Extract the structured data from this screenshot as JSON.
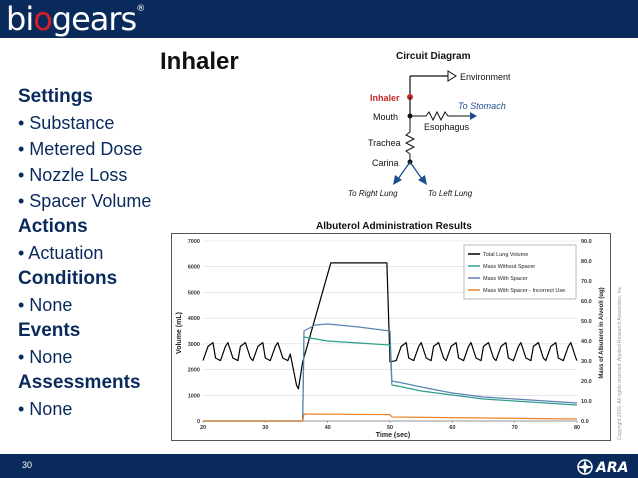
{
  "header": {
    "logo_prefix": "bi",
    "logo_dot": "o",
    "logo_suffix": "gears",
    "logo_reg": "®"
  },
  "slide": {
    "title": "Inhaler",
    "page_number": "30",
    "copyright": "Copyright 2015. All rights reserved. Applied Research Associates, Inc."
  },
  "settings_list": [
    {
      "type": "head",
      "text": "Settings"
    },
    {
      "type": "item",
      "text": "• Substance"
    },
    {
      "type": "item",
      "text": "• Metered Dose"
    },
    {
      "type": "item",
      "text": "• Nozzle Loss"
    },
    {
      "type": "item",
      "text": "• Spacer Volume"
    },
    {
      "type": "head",
      "text": "Actions"
    },
    {
      "type": "item",
      "text": "• Actuation"
    },
    {
      "type": "head",
      "text": "Conditions"
    },
    {
      "type": "item",
      "text": "• None"
    },
    {
      "type": "head",
      "text": "Events"
    },
    {
      "type": "item",
      "text": "• None"
    },
    {
      "type": "head",
      "text": "Assessments"
    },
    {
      "type": "item",
      "text": "• None"
    }
  ],
  "circuit": {
    "caption": "Circuit Diagram",
    "nodes": {
      "environment": "Environment",
      "inhaler": "Inhaler",
      "mouth": "Mouth",
      "esophagus": "Esophagus",
      "trachea": "Trachea",
      "carina": "Carina",
      "to_stomach": "To Stomach",
      "to_right_lung": "To Right Lung",
      "to_left_lung": "To Left Lung"
    }
  },
  "results_caption": "Albuterol Administration Results",
  "chart_data": {
    "type": "line",
    "xlabel": "Time (sec)",
    "ylabel": "Volume (mL)",
    "y2label": "Mass of Albuterol in Alveoli (ug)",
    "xlim": [
      20,
      80
    ],
    "ylim": [
      0,
      7000
    ],
    "y2lim": [
      0,
      90
    ],
    "x_ticks": [
      "20",
      "30",
      "40",
      "50",
      "60",
      "70",
      "80"
    ],
    "y_ticks": [
      "0",
      "1000",
      "2000",
      "3000",
      "4000",
      "5000",
      "6000",
      "7000"
    ],
    "y2_ticks": [
      "0.0",
      "10.0",
      "20.0",
      "30.0",
      "40.0",
      "50.0",
      "60.0",
      "70.0",
      "80.0",
      "90.0"
    ],
    "grid": true,
    "legend_position": "top-right",
    "series": [
      {
        "name": "Total Lung Volume",
        "axis": "left",
        "color": "#000000",
        "x": [
          20,
          20.8,
          21.6,
          22,
          22.8,
          23.6,
          24,
          24.8,
          25.6,
          26,
          26.8,
          27.6,
          28,
          28.8,
          29.6,
          30,
          30.8,
          31.6,
          32,
          32.8,
          33.6,
          34,
          35,
          35.3,
          36,
          40.5,
          49.5,
          50,
          51,
          51.8,
          52.6,
          53,
          53.8,
          54.6,
          55,
          55.8,
          56.6,
          57,
          57.8,
          58.6,
          59,
          59.8,
          60.6,
          61,
          61.8,
          62.6,
          63,
          63.8,
          64.6,
          65,
          65.8,
          66.6,
          67,
          67.8,
          68.6,
          69,
          69.8,
          70.6,
          71,
          71.8,
          72.6,
          73,
          73.8,
          74.6,
          75,
          75.8,
          76.6,
          77,
          77.8,
          78.6,
          79,
          79.8,
          80
        ],
        "y": [
          2350,
          2900,
          3050,
          2450,
          2350,
          2900,
          3050,
          2450,
          2350,
          2900,
          3050,
          2450,
          2350,
          2900,
          3050,
          2450,
          2350,
          2900,
          3050,
          2450,
          2350,
          2600,
          1400,
          1250,
          2300,
          6150,
          6150,
          2300,
          2350,
          2900,
          3050,
          2450,
          2350,
          2900,
          3050,
          2450,
          2350,
          2900,
          3050,
          2450,
          2350,
          2900,
          3050,
          2450,
          2350,
          2900,
          3050,
          2450,
          2350,
          2900,
          3050,
          2450,
          2350,
          2900,
          3050,
          2450,
          2350,
          2900,
          3050,
          2450,
          2350,
          2900,
          3050,
          2450,
          2350,
          2900,
          3050,
          2450,
          2350,
          2900,
          3050,
          2450,
          2350
        ]
      },
      {
        "name": "Mass Without Spacer",
        "axis": "right",
        "color": "#2ca08a",
        "x": [
          20,
          35.5,
          36,
          36.2,
          40,
          45,
          50,
          50.3,
          52,
          55,
          60,
          65,
          70,
          75,
          80
        ],
        "y": [
          0,
          0,
          0,
          42,
          40,
          39,
          38,
          18,
          17,
          15,
          13,
          11,
          10,
          9,
          8
        ]
      },
      {
        "name": "Mass With Spacer",
        "axis": "right",
        "color": "#5b82b5",
        "x": [
          20,
          35.5,
          36,
          36.2,
          38,
          40,
          45,
          50,
          50.3,
          52,
          55,
          60,
          65,
          70,
          75,
          80
        ],
        "y": [
          0,
          0,
          0,
          45,
          48,
          48.5,
          47,
          45,
          20,
          19,
          17,
          14,
          12,
          11,
          10,
          9
        ]
      },
      {
        "name": "Mass With Spacer - Incorrect Use",
        "axis": "right",
        "color": "#e8852b",
        "x": [
          20,
          35.5,
          36,
          36.2,
          50,
          50.3,
          80
        ],
        "y": [
          0,
          0,
          0,
          3.5,
          3.2,
          2,
          1
        ]
      }
    ]
  }
}
